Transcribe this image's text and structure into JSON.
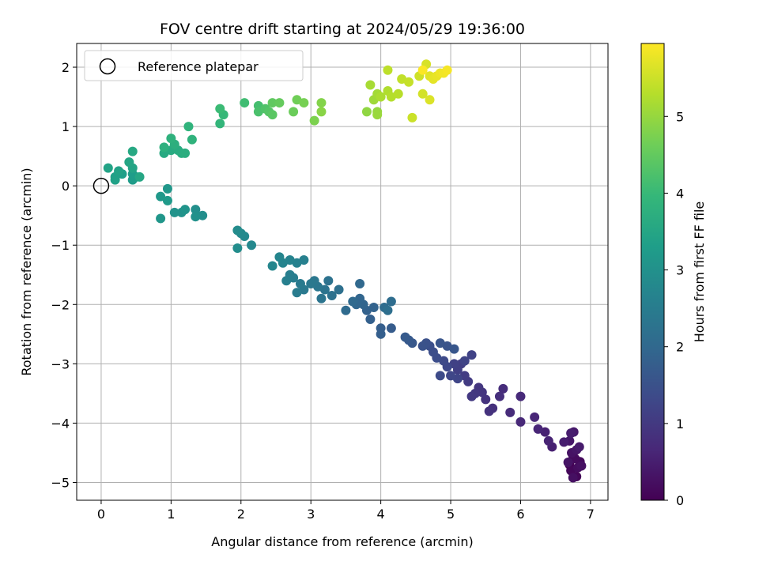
{
  "chart_data": {
    "type": "scatter",
    "title": "FOV centre drift starting at 2024/05/29 19:36:00",
    "xlabel": "Angular distance from reference (arcmin)",
    "ylabel": "Rotation from reference (arcmin)",
    "xlim": [
      -0.35,
      7.25
    ],
    "ylim": [
      -5.3,
      2.4
    ],
    "x_ticks": [
      0,
      1,
      2,
      3,
      4,
      5,
      6,
      7
    ],
    "y_ticks": [
      -5,
      -4,
      -3,
      -2,
      -1,
      0,
      1,
      2
    ],
    "grid": true,
    "legend": {
      "placement": "top-left",
      "entries": [
        "Reference platepar"
      ]
    },
    "reference_point": {
      "x": 0,
      "y": 0,
      "label": "Reference platepar"
    },
    "colorbar": {
      "label": "Hours from first FF file",
      "range": [
        0,
        5.95
      ],
      "ticks": [
        0,
        1,
        2,
        3,
        4,
        5
      ],
      "colormap": "viridis"
    },
    "colormap_stops": [
      "#440154",
      "#482878",
      "#3e4989",
      "#31688e",
      "#26828e",
      "#1f9e89",
      "#35b779",
      "#6ece58",
      "#b5de2b",
      "#fde725"
    ],
    "points": [
      [
        6.7,
        -4.7,
        0.02
      ],
      [
        6.75,
        -4.55,
        0.05
      ],
      [
        6.8,
        -4.9,
        0.08
      ],
      [
        6.72,
        -4.8,
        0.11
      ],
      [
        6.85,
        -4.65,
        0.14
      ],
      [
        6.78,
        -4.6,
        0.17
      ],
      [
        6.82,
        -4.75,
        0.2
      ],
      [
        6.75,
        -4.92,
        0.23
      ],
      [
        6.87,
        -4.72,
        0.26
      ],
      [
        6.73,
        -4.5,
        0.29
      ],
      [
        6.68,
        -4.66,
        0.32
      ],
      [
        6.8,
        -4.45,
        0.35
      ],
      [
        6.7,
        -4.3,
        0.38
      ],
      [
        6.76,
        -4.15,
        0.41
      ],
      [
        6.84,
        -4.4,
        0.44
      ],
      [
        6.72,
        -4.17,
        0.47
      ],
      [
        6.62,
        -4.32,
        0.5
      ],
      [
        6.45,
        -4.4,
        0.53
      ],
      [
        6.35,
        -4.15,
        0.56
      ],
      [
        6.4,
        -4.3,
        0.59
      ],
      [
        6.25,
        -4.1,
        0.62
      ],
      [
        6.2,
        -3.9,
        0.65
      ],
      [
        6.0,
        -3.98,
        0.68
      ],
      [
        6.0,
        -3.55,
        0.71
      ],
      [
        5.85,
        -3.82,
        0.74
      ],
      [
        5.75,
        -3.42,
        0.77
      ],
      [
        5.7,
        -3.55,
        0.8
      ],
      [
        5.6,
        -3.75,
        0.83
      ],
      [
        5.55,
        -3.8,
        0.86
      ],
      [
        5.5,
        -3.6,
        0.89
      ],
      [
        5.45,
        -3.48,
        0.92
      ],
      [
        5.4,
        -3.4,
        0.95
      ],
      [
        5.35,
        -3.5,
        0.98
      ],
      [
        5.3,
        -3.55,
        1.01
      ],
      [
        5.25,
        -3.3,
        1.04
      ],
      [
        5.2,
        -3.2,
        1.07
      ],
      [
        5.15,
        -3.0,
        1.1
      ],
      [
        5.1,
        -3.1,
        1.13
      ],
      [
        5.05,
        -3.0,
        1.16
      ],
      [
        5.3,
        -2.85,
        1.19
      ],
      [
        5.2,
        -2.95,
        1.22
      ],
      [
        5.1,
        -3.25,
        1.25
      ],
      [
        5.0,
        -3.2,
        1.28
      ],
      [
        4.95,
        -3.05,
        1.31
      ],
      [
        4.9,
        -2.95,
        1.34
      ],
      [
        4.85,
        -3.2,
        1.37
      ],
      [
        4.8,
        -2.9,
        1.4
      ],
      [
        4.75,
        -2.8,
        1.43
      ],
      [
        4.7,
        -2.7,
        1.46
      ],
      [
        4.65,
        -2.65,
        1.49
      ],
      [
        4.6,
        -2.7,
        1.52
      ],
      [
        4.95,
        -2.7,
        1.55
      ],
      [
        4.85,
        -2.65,
        1.58
      ],
      [
        5.05,
        -2.75,
        1.61
      ],
      [
        4.45,
        -2.65,
        1.64
      ],
      [
        4.4,
        -2.6,
        1.67
      ],
      [
        4.35,
        -2.55,
        1.7
      ],
      [
        4.15,
        -2.4,
        1.73
      ],
      [
        4.0,
        -2.4,
        1.76
      ],
      [
        4.0,
        -2.5,
        1.79
      ],
      [
        3.85,
        -2.25,
        1.82
      ],
      [
        3.8,
        -2.1,
        1.85
      ],
      [
        3.9,
        -2.05,
        1.88
      ],
      [
        3.75,
        -2.0,
        1.91
      ],
      [
        3.7,
        -1.9,
        1.94
      ],
      [
        3.65,
        -2.0,
        1.97
      ],
      [
        3.7,
        -1.65,
        2.0
      ],
      [
        3.6,
        -1.95,
        2.03
      ],
      [
        3.5,
        -2.1,
        2.06
      ],
      [
        4.05,
        -2.05,
        2.09
      ],
      [
        4.15,
        -1.95,
        2.12
      ],
      [
        4.1,
        -2.1,
        2.15
      ],
      [
        3.4,
        -1.75,
        2.18
      ],
      [
        3.3,
        -1.85,
        2.21
      ],
      [
        3.25,
        -1.6,
        2.24
      ],
      [
        3.2,
        -1.75,
        2.27
      ],
      [
        3.15,
        -1.9,
        2.3
      ],
      [
        3.1,
        -1.7,
        2.33
      ],
      [
        3.05,
        -1.6,
        2.36
      ],
      [
        3.0,
        -1.65,
        2.39
      ],
      [
        2.9,
        -1.75,
        2.42
      ],
      [
        2.85,
        -1.65,
        2.45
      ],
      [
        2.8,
        -1.8,
        2.48
      ],
      [
        2.75,
        -1.55,
        2.51
      ],
      [
        2.7,
        -1.5,
        2.54
      ],
      [
        2.65,
        -1.6,
        2.57
      ],
      [
        2.9,
        -1.25,
        2.6
      ],
      [
        2.8,
        -1.3,
        2.63
      ],
      [
        2.7,
        -1.25,
        2.66
      ],
      [
        2.6,
        -1.3,
        2.69
      ],
      [
        2.55,
        -1.2,
        2.72
      ],
      [
        2.45,
        -1.35,
        2.75
      ],
      [
        2.15,
        -1.0,
        2.78
      ],
      [
        2.05,
        -0.85,
        2.81
      ],
      [
        2.0,
        -0.8,
        2.84
      ],
      [
        1.95,
        -0.75,
        2.87
      ],
      [
        1.95,
        -1.05,
        2.9
      ],
      [
        1.45,
        -0.5,
        2.93
      ],
      [
        1.35,
        -0.4,
        2.96
      ],
      [
        1.35,
        -0.52,
        2.99
      ],
      [
        1.15,
        -0.45,
        3.02
      ],
      [
        1.05,
        -0.45,
        3.05
      ],
      [
        1.2,
        -0.4,
        3.08
      ],
      [
        0.85,
        -0.55,
        3.11
      ],
      [
        0.95,
        -0.05,
        3.14
      ],
      [
        0.85,
        -0.18,
        3.17
      ],
      [
        0.95,
        -0.25,
        3.2
      ],
      [
        0.5,
        0.15,
        3.23
      ],
      [
        0.45,
        0.1,
        3.26
      ],
      [
        0.45,
        0.2,
        3.29
      ],
      [
        0.3,
        0.2,
        3.32
      ],
      [
        0.2,
        0.15,
        3.35
      ],
      [
        0.2,
        0.1,
        3.38
      ],
      [
        0.25,
        0.25,
        3.41
      ],
      [
        0.1,
        0.3,
        3.44
      ],
      [
        0.45,
        0.3,
        3.47
      ],
      [
        0.4,
        0.4,
        3.5
      ],
      [
        0.55,
        0.15,
        3.53
      ],
      [
        0.45,
        0.58,
        3.56
      ],
      [
        0.9,
        0.55,
        3.59
      ],
      [
        1.0,
        0.6,
        3.62
      ],
      [
        1.1,
        0.6,
        3.65
      ],
      [
        1.15,
        0.55,
        3.68
      ],
      [
        1.2,
        0.55,
        3.71
      ],
      [
        1.05,
        0.7,
        3.74
      ],
      [
        0.9,
        0.65,
        3.77
      ],
      [
        1.0,
        0.8,
        3.8
      ],
      [
        1.3,
        0.78,
        3.83
      ],
      [
        1.25,
        1.0,
        3.86
      ],
      [
        1.7,
        1.05,
        3.92
      ],
      [
        1.75,
        1.2,
        3.98
      ],
      [
        1.7,
        1.3,
        4.04
      ],
      [
        2.05,
        1.4,
        4.1
      ],
      [
        2.25,
        1.35,
        4.16
      ],
      [
        2.25,
        1.25,
        4.22
      ],
      [
        2.35,
        1.3,
        4.28
      ],
      [
        2.4,
        1.25,
        4.34
      ],
      [
        2.45,
        1.2,
        4.4
      ],
      [
        2.45,
        1.4,
        4.46
      ],
      [
        2.55,
        1.4,
        4.52
      ],
      [
        2.75,
        1.25,
        4.58
      ],
      [
        2.8,
        1.45,
        4.64
      ],
      [
        2.9,
        1.4,
        4.7
      ],
      [
        3.05,
        1.1,
        4.76
      ],
      [
        3.15,
        1.4,
        4.82
      ],
      [
        3.15,
        1.25,
        4.88
      ],
      [
        3.8,
        1.25,
        4.94
      ],
      [
        3.95,
        1.25,
        5.0
      ],
      [
        3.95,
        1.2,
        5.04
      ],
      [
        3.9,
        1.45,
        5.08
      ],
      [
        3.95,
        1.55,
        5.12
      ],
      [
        3.85,
        1.7,
        5.16
      ],
      [
        4.0,
        1.5,
        5.2
      ],
      [
        4.1,
        1.6,
        5.24
      ],
      [
        4.15,
        1.5,
        5.28
      ],
      [
        4.25,
        1.55,
        5.32
      ],
      [
        4.1,
        1.95,
        5.36
      ],
      [
        4.3,
        1.8,
        5.4
      ],
      [
        4.4,
        1.75,
        5.44
      ],
      [
        4.45,
        1.15,
        5.48
      ],
      [
        4.55,
        1.85,
        5.52
      ],
      [
        4.6,
        1.55,
        5.56
      ],
      [
        4.65,
        2.05,
        5.6
      ],
      [
        4.7,
        1.45,
        5.64
      ],
      [
        4.7,
        1.85,
        5.68
      ],
      [
        4.75,
        1.8,
        5.72
      ],
      [
        4.8,
        1.85,
        5.76
      ],
      [
        4.85,
        1.9,
        5.8
      ],
      [
        4.9,
        1.9,
        5.84
      ],
      [
        4.95,
        1.95,
        5.88
      ],
      [
        4.6,
        1.95,
        5.92
      ]
    ]
  }
}
